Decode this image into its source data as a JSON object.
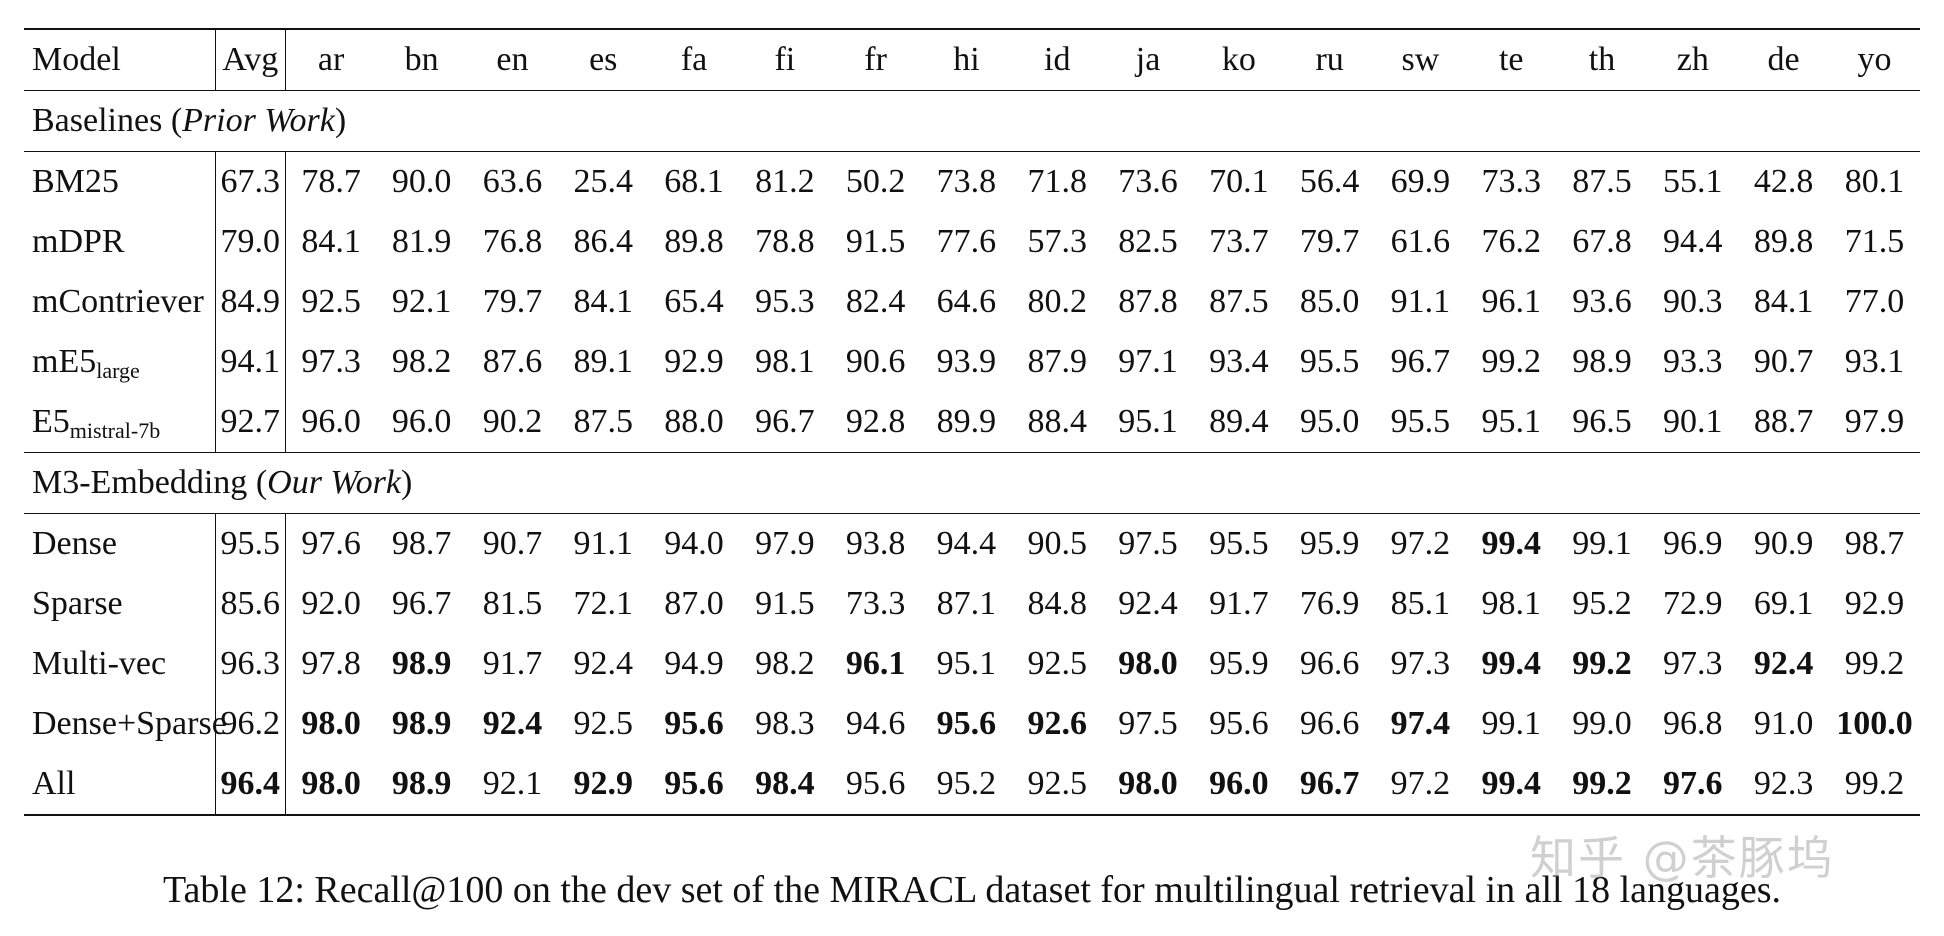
{
  "table": {
    "columns": [
      "Model",
      "Avg",
      "ar",
      "bn",
      "en",
      "es",
      "fa",
      "fi",
      "fr",
      "hi",
      "id",
      "ja",
      "ko",
      "ru",
      "sw",
      "te",
      "th",
      "zh",
      "de",
      "yo"
    ],
    "sections": [
      {
        "title": "Baselines",
        "title_italic": "Prior Work",
        "rows": [
          {
            "model": "BM25",
            "sub": "",
            "values": [
              "67.3",
              "78.7",
              "90.0",
              "63.6",
              "25.4",
              "68.1",
              "81.2",
              "50.2",
              "73.8",
              "71.8",
              "73.6",
              "70.1",
              "56.4",
              "69.9",
              "73.3",
              "87.5",
              "55.1",
              "42.8",
              "80.1"
            ],
            "bold": []
          },
          {
            "model": "mDPR",
            "sub": "",
            "values": [
              "79.0",
              "84.1",
              "81.9",
              "76.8",
              "86.4",
              "89.8",
              "78.8",
              "91.5",
              "77.6",
              "57.3",
              "82.5",
              "73.7",
              "79.7",
              "61.6",
              "76.2",
              "67.8",
              "94.4",
              "89.8",
              "71.5"
            ],
            "bold": []
          },
          {
            "model": "mContriever",
            "sub": "",
            "values": [
              "84.9",
              "92.5",
              "92.1",
              "79.7",
              "84.1",
              "65.4",
              "95.3",
              "82.4",
              "64.6",
              "80.2",
              "87.8",
              "87.5",
              "85.0",
              "91.1",
              "96.1",
              "93.6",
              "90.3",
              "84.1",
              "77.0"
            ],
            "bold": []
          },
          {
            "model": "mE5",
            "sub": "large",
            "values": [
              "94.1",
              "97.3",
              "98.2",
              "87.6",
              "89.1",
              "92.9",
              "98.1",
              "90.6",
              "93.9",
              "87.9",
              "97.1",
              "93.4",
              "95.5",
              "96.7",
              "99.2",
              "98.9",
              "93.3",
              "90.7",
              "93.1"
            ],
            "bold": []
          },
          {
            "model": "E5",
            "sub": "mistral-7b",
            "values": [
              "92.7",
              "96.0",
              "96.0",
              "90.2",
              "87.5",
              "88.0",
              "96.7",
              "92.8",
              "89.9",
              "88.4",
              "95.1",
              "89.4",
              "95.0",
              "95.5",
              "95.1",
              "96.5",
              "90.1",
              "88.7",
              "97.9"
            ],
            "bold": []
          }
        ]
      },
      {
        "title": "M3-Embedding",
        "title_italic": "Our Work",
        "rows": [
          {
            "model": "Dense",
            "sub": "",
            "values": [
              "95.5",
              "97.6",
              "98.7",
              "90.7",
              "91.1",
              "94.0",
              "97.9",
              "93.8",
              "94.4",
              "90.5",
              "97.5",
              "95.5",
              "95.9",
              "97.2",
              "99.4",
              "99.1",
              "96.9",
              "90.9",
              "98.7"
            ],
            "bold": [
              14
            ]
          },
          {
            "model": "Sparse",
            "sub": "",
            "values": [
              "85.6",
              "92.0",
              "96.7",
              "81.5",
              "72.1",
              "87.0",
              "91.5",
              "73.3",
              "87.1",
              "84.8",
              "92.4",
              "91.7",
              "76.9",
              "85.1",
              "98.1",
              "95.2",
              "72.9",
              "69.1",
              "92.9"
            ],
            "bold": []
          },
          {
            "model": "Multi-vec",
            "sub": "",
            "values": [
              "96.3",
              "97.8",
              "98.9",
              "91.7",
              "92.4",
              "94.9",
              "98.2",
              "96.1",
              "95.1",
              "92.5",
              "98.0",
              "95.9",
              "96.6",
              "97.3",
              "99.4",
              "99.2",
              "97.3",
              "92.4",
              "99.2"
            ],
            "bold": [
              2,
              7,
              10,
              14,
              15,
              17
            ]
          },
          {
            "model": "Dense+Sparse",
            "sub": "",
            "values": [
              "96.2",
              "98.0",
              "98.9",
              "92.4",
              "92.5",
              "95.6",
              "98.3",
              "94.6",
              "95.6",
              "92.6",
              "97.5",
              "95.6",
              "96.6",
              "97.4",
              "99.1",
              "99.0",
              "96.8",
              "91.0",
              "100.0"
            ],
            "bold": [
              1,
              2,
              3,
              5,
              8,
              9,
              13,
              18
            ]
          },
          {
            "model": "All",
            "sub": "",
            "values": [
              "96.4",
              "98.0",
              "98.9",
              "92.1",
              "92.9",
              "95.6",
              "98.4",
              "95.6",
              "95.2",
              "92.5",
              "98.0",
              "96.0",
              "96.7",
              "97.2",
              "99.4",
              "99.2",
              "97.6",
              "92.3",
              "99.2"
            ],
            "bold": [
              0,
              1,
              2,
              4,
              5,
              6,
              10,
              11,
              12,
              14,
              15,
              16
            ]
          }
        ]
      }
    ]
  },
  "caption": "Table 12: Recall@100 on the dev set of the MIRACL dataset for multilingual retrieval in all 18 languages.",
  "watermark": "知乎 @茶豚坞"
}
